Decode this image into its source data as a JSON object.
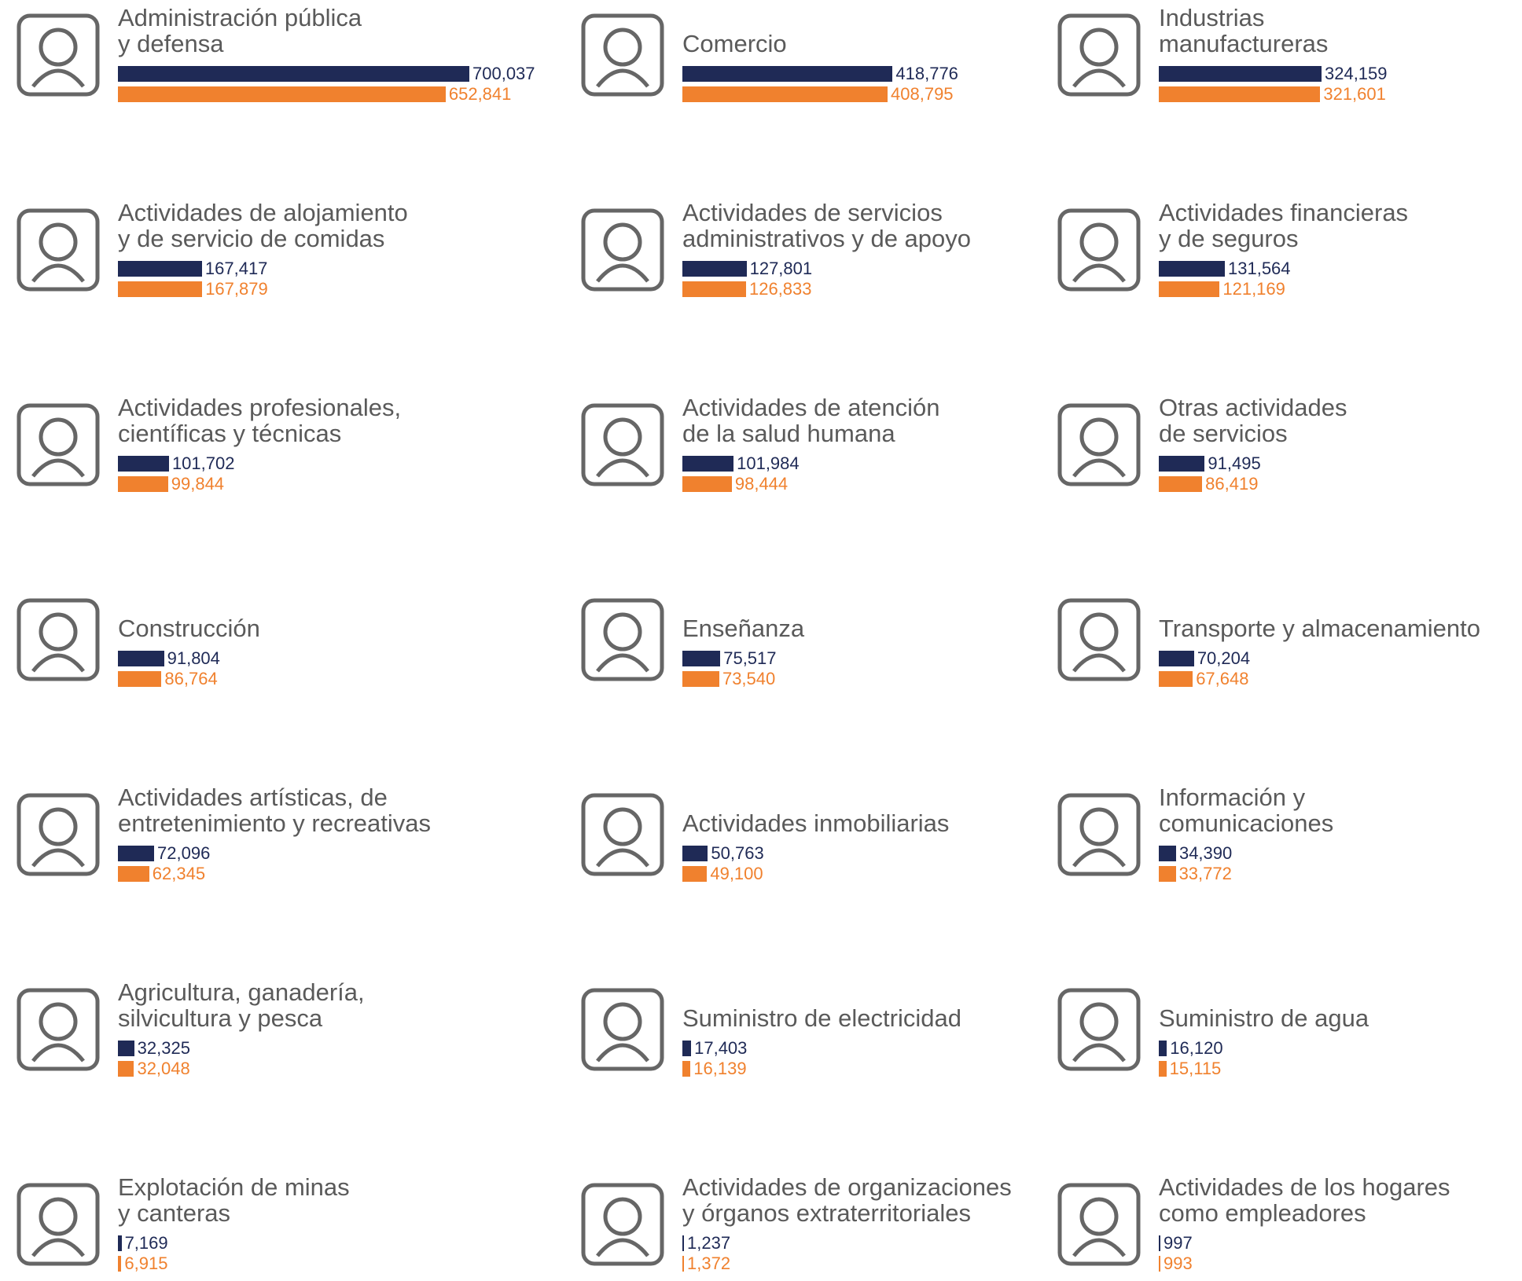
{
  "chart_data": {
    "type": "bar",
    "categories": [
      "Administración pública\ny defensa",
      "Comercio",
      "Industrias\nmanufactureras",
      "Actividades de alojamiento\ny de servicio de comidas",
      "Actividades de servicios\nadministrativos y de apoyo",
      "Actividades financieras\ny de seguros",
      "Actividades profesionales,\ncientíficas y técnicas",
      "Actividades de atención\nde la salud humana",
      "Otras actividades\nde servicios",
      "Construcción",
      "Enseñanza",
      "Transporte y almacenamiento",
      "Actividades artísticas, de\nentretenimiento y recreativas",
      "Actividades inmobiliarias",
      "Información y\ncomunicaciones",
      "Agricultura, ganadería,\nsilvicultura y pesca",
      "Suministro de electricidad",
      "Suministro de agua",
      "Explotación de minas\ny canteras",
      "Actividades de organizaciones\ny órganos extraterritoriales",
      "Actividades de los hogares\ncomo empleadores"
    ],
    "series": [
      {
        "color": "#1f2a56",
        "values": [
          700037,
          418776,
          324159,
          167417,
          127801,
          131564,
          101702,
          101984,
          91495,
          91804,
          75517,
          70204,
          72096,
          50763,
          34390,
          32325,
          17403,
          16120,
          7169,
          1237,
          997
        ],
        "value_labels": [
          "700,037",
          "418,776",
          "324,159",
          "167,417",
          "127,801",
          "131,564",
          "101,702",
          "101,984",
          "91,495",
          "91,804",
          "75,517",
          "70,204",
          "72,096",
          "50,763",
          "34,390",
          "32,325",
          "17,403",
          "16,120",
          "7,169",
          "1,237",
          "997"
        ]
      },
      {
        "color": "#f0812e",
        "values": [
          652841,
          408795,
          321601,
          167879,
          126833,
          121169,
          99844,
          98444,
          86419,
          86764,
          73540,
          67648,
          62345,
          49100,
          33772,
          32048,
          16139,
          15115,
          6915,
          1372,
          993
        ],
        "value_labels": [
          "652,841",
          "408,795",
          "321,601",
          "167,879",
          "126,833",
          "121,169",
          "99,844",
          "98,444",
          "86,419",
          "86,764",
          "73,540",
          "67,648",
          "62,345",
          "49,100",
          "33,772",
          "32,048",
          "16,139",
          "15,115",
          "6,915",
          "1,372",
          "993"
        ]
      }
    ]
  }
}
